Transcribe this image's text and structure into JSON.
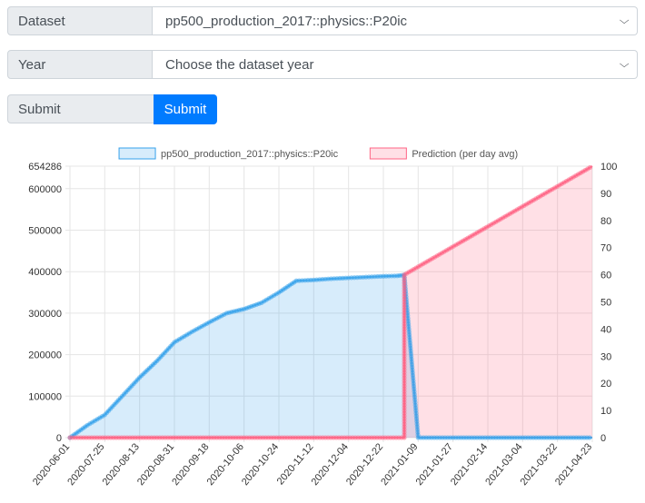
{
  "form": {
    "dataset_label": "Dataset",
    "dataset_value": "pp500_production_2017::physics::P20ic",
    "year_label": "Year",
    "year_value": "Choose the dataset year",
    "submit_label": "Submit",
    "submit_button": "Submit"
  },
  "chart_data": {
    "type": "line",
    "legend": [
      {
        "name": "pp500_production_2017::physics::P20ic",
        "color": "#36a2eb"
      },
      {
        "name": "Prediction (per day avg)",
        "color": "#ff6384"
      }
    ],
    "legend_position": "top",
    "x_ticks": [
      "2020-06-01",
      "2020-07-25",
      "2020-08-13",
      "2020-08-31",
      "2020-09-18",
      "2020-10-06",
      "2020-10-24",
      "2020-11-12",
      "2020-12-04",
      "2020-12-22",
      "2021-01-09",
      "2021-01-27",
      "2021-02-14",
      "2021-03-04",
      "2021-03-22",
      "2021-04-23"
    ],
    "y_left_ticks": [
      "0",
      "100000",
      "200000",
      "300000",
      "400000",
      "500000",
      "600000",
      "654286"
    ],
    "y_left_range": [
      0,
      654286
    ],
    "y_right_ticks": [
      "0",
      "10",
      "20",
      "30",
      "40",
      "50",
      "60",
      "70",
      "80",
      "90",
      "100"
    ],
    "y_right_range": [
      0,
      100
    ],
    "grid": true,
    "series": [
      {
        "name": "pp500_production_2017::physics::P20ic",
        "axis": "left",
        "x": [
          0,
          0.5,
          1,
          1.5,
          2,
          2.5,
          3,
          3.5,
          4,
          4.5,
          5,
          5.5,
          6,
          6.5,
          7,
          7.5,
          8,
          8.5,
          9,
          9.4,
          9.6,
          10,
          11,
          12,
          13,
          14,
          15
        ],
        "y": [
          0,
          30000,
          55000,
          100000,
          145000,
          185000,
          230000,
          255000,
          278000,
          300000,
          310000,
          325000,
          350000,
          378000,
          380000,
          383000,
          385000,
          387000,
          389000,
          390000,
          392000,
          0,
          0,
          0,
          0,
          0,
          0
        ]
      },
      {
        "name": "Prediction (per day avg)",
        "axis": "right",
        "x": [
          0,
          9.6,
          9.6,
          15
        ],
        "y": [
          0,
          0,
          60,
          100
        ]
      }
    ]
  }
}
